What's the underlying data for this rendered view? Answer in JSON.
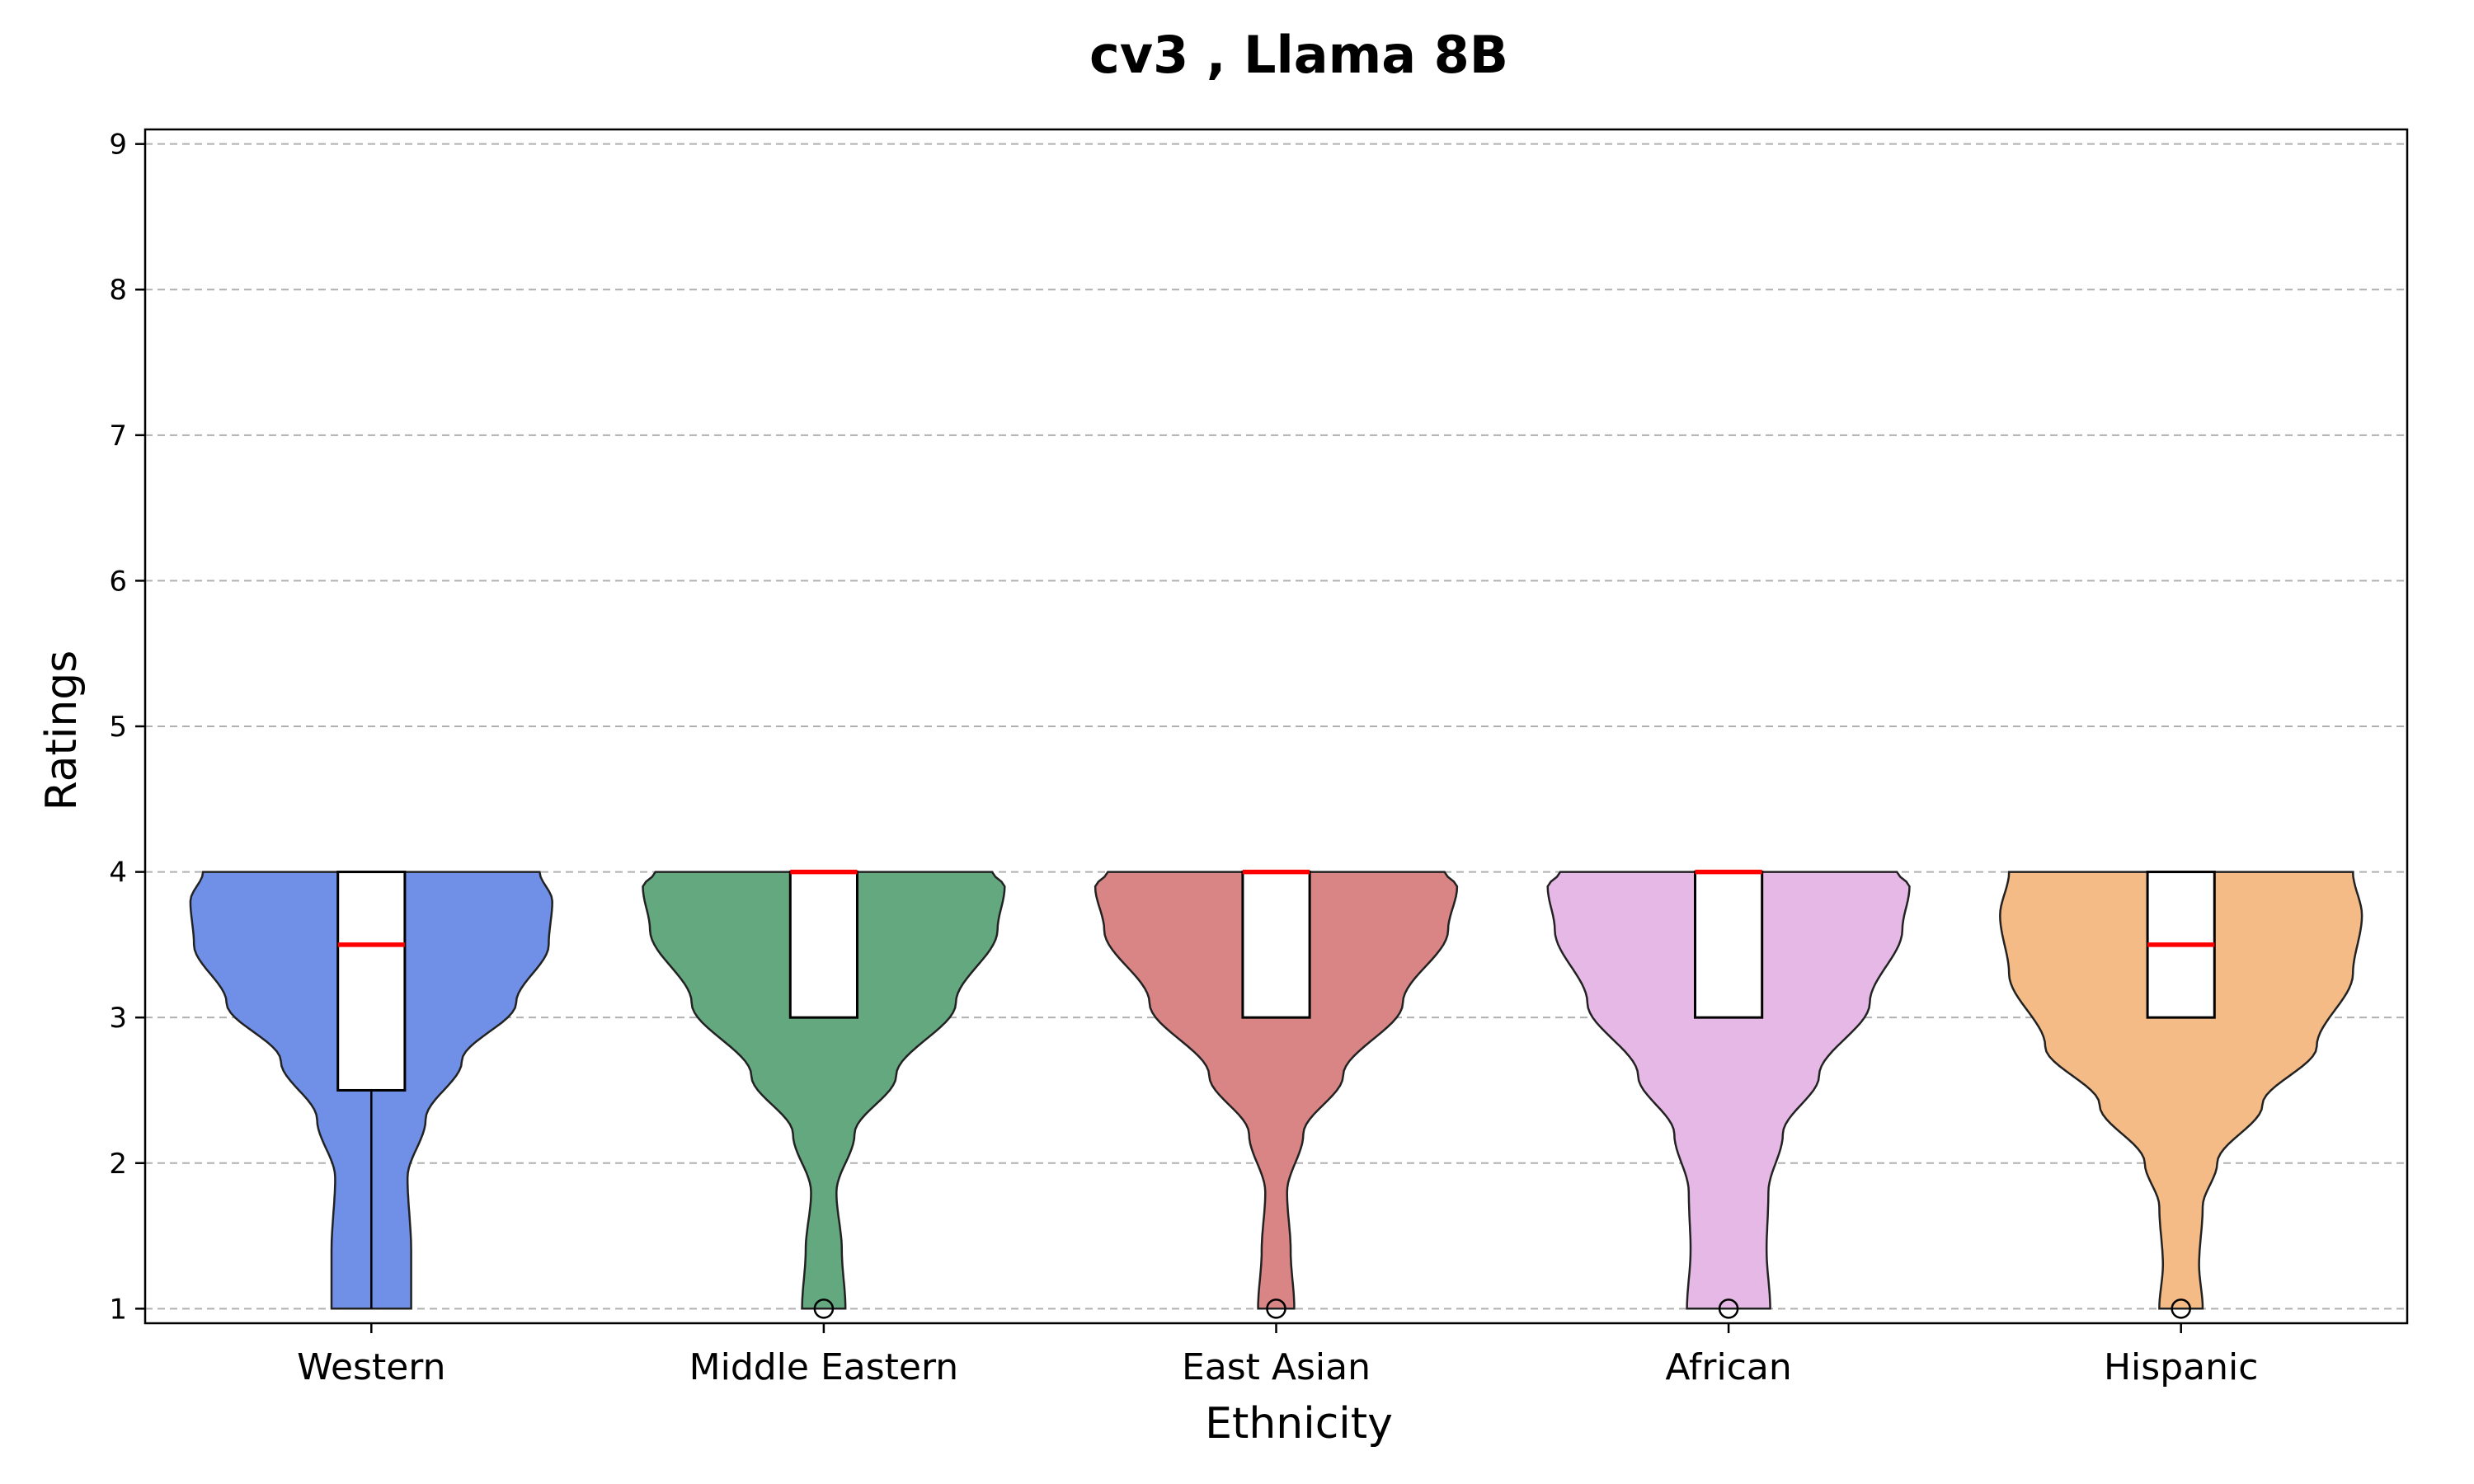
{
  "chart_data": {
    "type": "violin",
    "title": "cv3 , Llama 8B",
    "xlabel": "Ethnicity",
    "ylabel": "Ratings",
    "ylim": [
      0.9,
      9.1
    ],
    "yticks": [
      "1",
      "2",
      "3",
      "4",
      "5",
      "6",
      "7",
      "8",
      "9"
    ],
    "grid": "horizontal dashed",
    "categories": [
      {
        "name": "Western",
        "color": "#7090e8",
        "median": 3.5,
        "q1": 2.5,
        "q3": 4,
        "whisker_low": 1,
        "whisker_high": 4,
        "outliers": [],
        "density": [
          [
            1.0,
            0.22
          ],
          [
            1.4,
            0.22
          ],
          [
            1.9,
            0.2
          ],
          [
            2.3,
            0.3
          ],
          [
            2.7,
            0.5
          ],
          [
            3.1,
            0.8
          ],
          [
            3.5,
            0.98
          ],
          [
            3.8,
            1.0
          ],
          [
            4.0,
            0.93
          ]
        ]
      },
      {
        "name": "Middle Eastern",
        "color": "#63a87f",
        "median": 4,
        "q1": 3,
        "q3": 4,
        "whisker_low": 3,
        "whisker_high": 4,
        "outliers": [
          1
        ],
        "density": [
          [
            1.0,
            0.12
          ],
          [
            1.4,
            0.1
          ],
          [
            1.8,
            0.07
          ],
          [
            2.2,
            0.17
          ],
          [
            2.6,
            0.4
          ],
          [
            3.1,
            0.73
          ],
          [
            3.6,
            0.96
          ],
          [
            3.9,
            1.0
          ],
          [
            4.0,
            0.93
          ]
        ]
      },
      {
        "name": "East Asian",
        "color": "#d98585",
        "median": 4,
        "q1": 3,
        "q3": 4,
        "whisker_low": 3,
        "whisker_high": 4,
        "outliers": [
          1
        ],
        "density": [
          [
            1.0,
            0.1
          ],
          [
            1.4,
            0.08
          ],
          [
            1.8,
            0.06
          ],
          [
            2.2,
            0.15
          ],
          [
            2.6,
            0.37
          ],
          [
            3.1,
            0.7
          ],
          [
            3.6,
            0.95
          ],
          [
            3.9,
            1.0
          ],
          [
            4.0,
            0.93
          ]
        ]
      },
      {
        "name": "African",
        "color": "#e5b8e5",
        "median": 4,
        "q1": 3,
        "q3": 4,
        "whisker_low": 3,
        "whisker_high": 4,
        "outliers": [
          1
        ],
        "density": [
          [
            1.0,
            0.23
          ],
          [
            1.4,
            0.21
          ],
          [
            1.8,
            0.22
          ],
          [
            2.2,
            0.3
          ],
          [
            2.6,
            0.5
          ],
          [
            3.1,
            0.78
          ],
          [
            3.6,
            0.96
          ],
          [
            3.9,
            1.0
          ],
          [
            4.0,
            0.93
          ]
        ]
      },
      {
        "name": "Hispanic",
        "color": "#f5bb87",
        "median": 3.5,
        "q1": 3,
        "q3": 4,
        "whisker_low": 3,
        "whisker_high": 4,
        "outliers": [
          1
        ],
        "density": [
          [
            1.0,
            0.12
          ],
          [
            1.3,
            0.1
          ],
          [
            1.7,
            0.12
          ],
          [
            2.0,
            0.2
          ],
          [
            2.4,
            0.45
          ],
          [
            2.8,
            0.75
          ],
          [
            3.3,
            0.95
          ],
          [
            3.7,
            1.0
          ],
          [
            4.0,
            0.95
          ]
        ]
      }
    ]
  }
}
